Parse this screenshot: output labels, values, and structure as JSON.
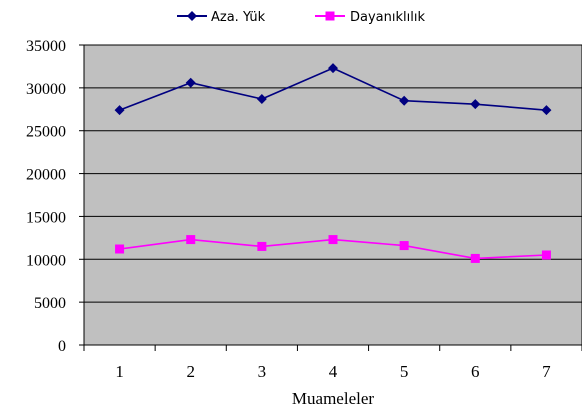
{
  "chart_data": {
    "type": "line",
    "title": "",
    "xlabel": "Muameleler",
    "ylabel": "",
    "x": [
      1,
      2,
      3,
      4,
      5,
      6,
      7
    ],
    "ylim": [
      0,
      35000
    ],
    "yticks": [
      0,
      5000,
      10000,
      15000,
      20000,
      25000,
      30000,
      35000
    ],
    "grid": true,
    "legend_position": "top",
    "background": "#c0c0c0",
    "series": [
      {
        "name": "Aza. Yük",
        "color": "#000080",
        "marker": "diamond",
        "values": [
          27400,
          30600,
          28700,
          32300,
          28500,
          28100,
          27400
        ]
      },
      {
        "name": "Dayanıklılık",
        "color": "#ff00ff",
        "marker": "square",
        "values": [
          11200,
          12300,
          11500,
          12300,
          11600,
          10100,
          10500
        ]
      }
    ]
  }
}
